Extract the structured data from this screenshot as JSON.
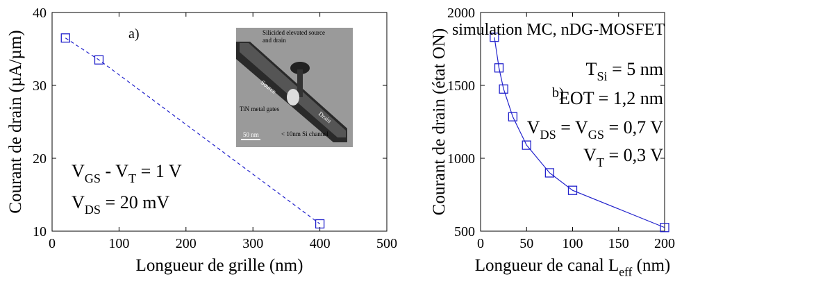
{
  "chart_data": [
    {
      "type": "line",
      "xlabel": "Longueur de grille (nm)",
      "ylabel": "Courant de drain (µA/µm)",
      "x": [
        20,
        70,
        400
      ],
      "series": [
        {
          "color": "#2222cc",
          "values": [
            36.5,
            33.5,
            11
          ],
          "line_style": "dashed",
          "marker": "square"
        }
      ],
      "xlim": [
        0,
        500
      ],
      "xticks": [
        0,
        100,
        200,
        300,
        400,
        500
      ],
      "ylim": [
        10,
        40
      ],
      "yticks": [
        10,
        20,
        30,
        40
      ],
      "annotations": [
        "a)",
        [
          "V",
          "GS",
          " - V",
          "T",
          " = 1 V"
        ],
        [
          "V",
          "DS",
          " = 20 mV"
        ]
      ],
      "inset": {
        "labels": [
          "Silicided elevated source",
          "and drain",
          "Source",
          "Drain",
          "TiN metal gates",
          "< 10nm Si channel",
          "50 nm"
        ]
      }
    },
    {
      "type": "line",
      "xlabel": [
        "Longueur de canal L",
        "eff",
        " (nm)"
      ],
      "ylabel": "Courant de drain (état ON)",
      "x": [
        15,
        20,
        25,
        35,
        50,
        75,
        100,
        200
      ],
      "series": [
        {
          "color": "#2222cc",
          "values": [
            1830,
            1620,
            1475,
            1285,
            1090,
            900,
            780,
            525
          ],
          "line_style": "solid",
          "marker": "square"
        }
      ],
      "xlim": [
        0,
        200
      ],
      "xticks": [
        0,
        50,
        100,
        150,
        200
      ],
      "ylim": [
        500,
        2000
      ],
      "yticks": [
        500,
        1000,
        1500,
        2000
      ],
      "annotations": [
        "simulation MC, nDG-MOSFET",
        "b)",
        [
          "T",
          "Si",
          " = 5 nm"
        ],
        "EOT = 1,2 nm",
        [
          "V",
          "DS",
          " = V",
          "GS",
          " = 0,7 V"
        ],
        [
          "V",
          "T",
          " = 0,3 V"
        ]
      ]
    }
  ]
}
